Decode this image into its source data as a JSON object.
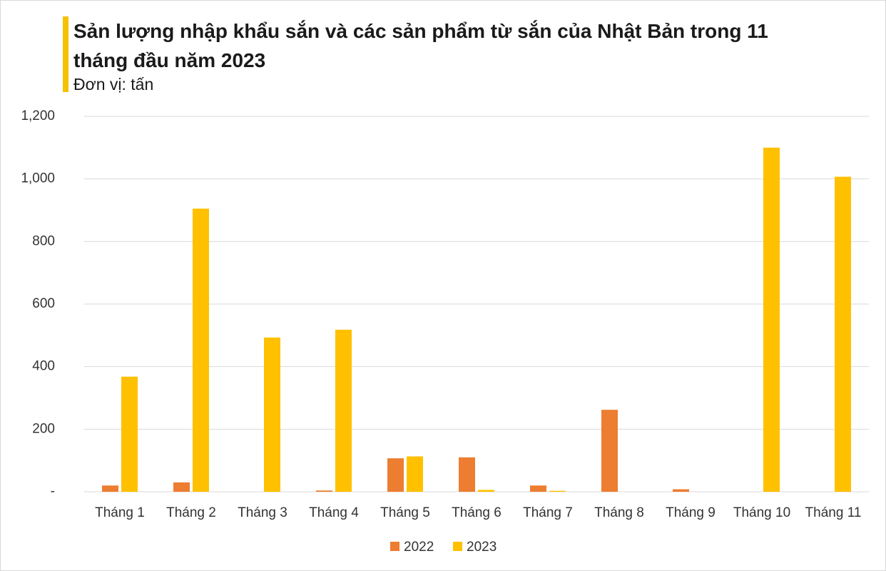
{
  "chart_data": {
    "type": "bar",
    "title": "Sản lượng nhập khẩu sắn và các sản phẩm từ sắn của Nhật Bản trong 11 tháng đầu năm 2023",
    "subtitle": "Đơn vị: tấn",
    "categories": [
      "Tháng 1",
      "Tháng 2",
      "Tháng 3",
      "Tháng 4",
      "Tháng 5",
      "Tháng 6",
      "Tháng 7",
      "Tháng 8",
      "Tháng 9",
      "Tháng 10",
      "Tháng 11"
    ],
    "series": [
      {
        "name": "2022",
        "color": "#ed7d31",
        "values": [
          20,
          30,
          0,
          4,
          107,
          110,
          20,
          262,
          8,
          0,
          0
        ]
      },
      {
        "name": "2023",
        "color": "#ffc000",
        "values": [
          368,
          905,
          493,
          518,
          113,
          6,
          3,
          0,
          0,
          1100,
          1007
        ]
      }
    ],
    "ylim": [
      0,
      1200
    ],
    "yticks": [
      {
        "value": 0,
        "label": "-"
      },
      200,
      400,
      600,
      800,
      {
        "value": 1000,
        "label": "1,000"
      },
      {
        "value": 1200,
        "label": "1,200"
      }
    ],
    "grid": true
  }
}
